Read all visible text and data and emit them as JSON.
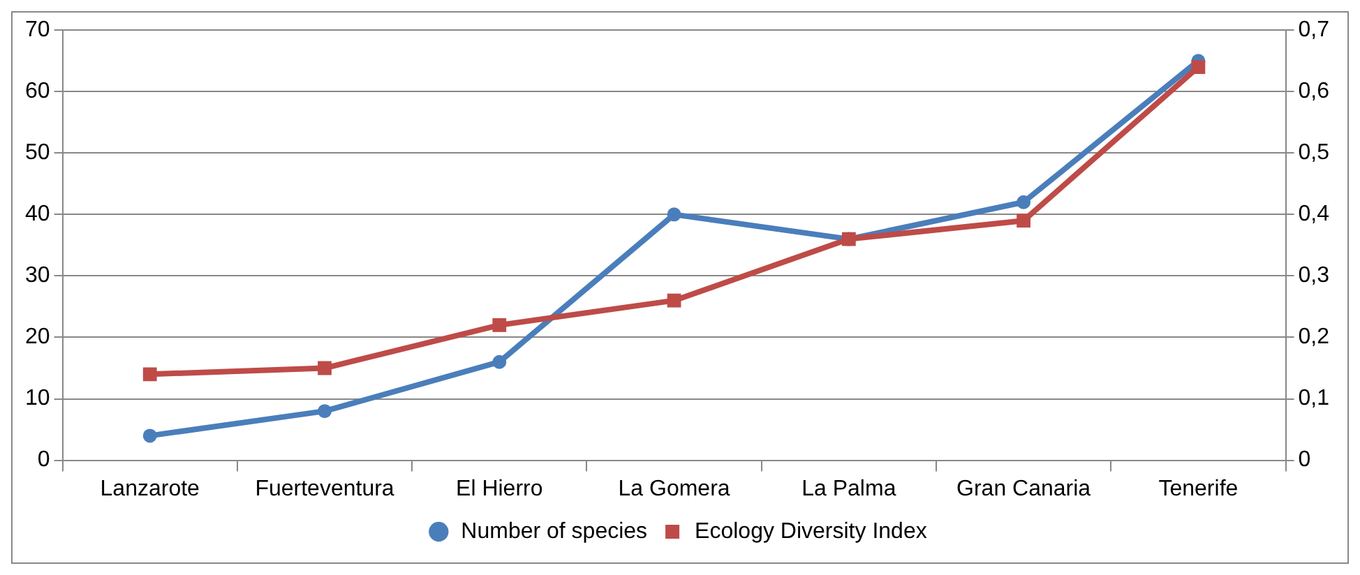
{
  "chart_data": {
    "type": "line",
    "categories": [
      "Lanzarote",
      "Fuerteventura",
      "El Hierro",
      "La Gomera",
      "La Palma",
      "Gran Canaria",
      "Tenerife"
    ],
    "series": [
      {
        "name": "Number of species",
        "color": "#4a7ebb",
        "marker": "circle",
        "values": [
          4,
          8,
          16,
          40,
          36,
          42,
          65
        ]
      },
      {
        "name": "Ecology Diversity Index",
        "color": "#be4b48",
        "marker": "square",
        "axis": "y2",
        "values": [
          0.14,
          0.15,
          0.22,
          0.26,
          0.36,
          0.39,
          0.64
        ]
      }
    ],
    "ylim": [
      0,
      70
    ],
    "yticks": [
      0,
      10,
      20,
      30,
      40,
      50,
      60,
      70
    ],
    "y2lim": [
      0,
      0.7
    ],
    "y2ticks": [
      {
        "value": 0,
        "label": "0"
      },
      {
        "value": 0.1,
        "label": "0,1"
      },
      {
        "value": 0.2,
        "label": "0,2"
      },
      {
        "value": 0.3,
        "label": "0,3"
      },
      {
        "value": 0.4,
        "label": "0,4"
      },
      {
        "value": 0.5,
        "label": "0,5"
      },
      {
        "value": 0.6,
        "label": "0,6"
      },
      {
        "value": 0.7,
        "label": "0,7"
      }
    ],
    "grid": "y",
    "legend": "bottom",
    "line_style": "solid"
  }
}
